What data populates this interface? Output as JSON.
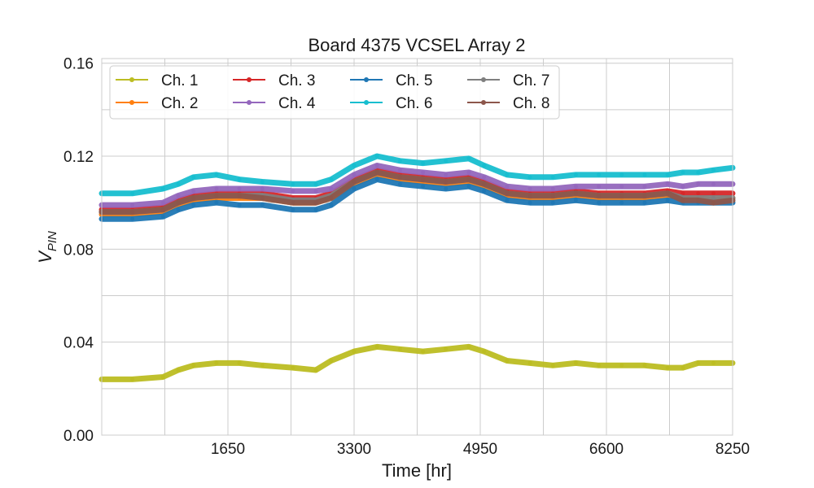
{
  "chart_data": {
    "type": "line",
    "title": "Board 4375 VCSEL Array 2",
    "xlabel": "Time [hr]",
    "ylabel_main": "V",
    "ylabel_sub": "PIN",
    "xlim": [
      0,
      8250
    ],
    "ylim": [
      0,
      0.162
    ],
    "xticks": [
      1650,
      3300,
      4950,
      6600,
      8250
    ],
    "xtick_labels": [
      "1650",
      "3300",
      "4950",
      "6600",
      "8250"
    ],
    "xgrid": [
      825,
      1650,
      2475,
      3300,
      4125,
      4950,
      5775,
      6600,
      7425,
      8250
    ],
    "yticks": [
      0.0,
      0.04,
      0.08,
      0.12,
      0.16
    ],
    "ytick_labels": [
      "0.00",
      "0.04",
      "0.08",
      "0.12",
      "0.16"
    ],
    "ygrid": [
      0.0,
      0.02,
      0.04,
      0.06,
      0.08,
      0.1,
      0.12,
      0.14,
      0.16
    ],
    "grid": true,
    "legend_position": "top-left",
    "x": [
      0,
      400,
      800,
      1000,
      1200,
      1500,
      1800,
      2100,
      2500,
      2800,
      3000,
      3300,
      3600,
      3900,
      4200,
      4500,
      4800,
      5000,
      5300,
      5600,
      5900,
      6200,
      6500,
      6800,
      7100,
      7400,
      7600,
      7800,
      8000,
      8250
    ],
    "series": [
      {
        "name": "Ch. 1",
        "color": "#bcbd22",
        "values": [
          0.024,
          0.024,
          0.025,
          0.028,
          0.03,
          0.031,
          0.031,
          0.03,
          0.029,
          0.028,
          0.032,
          0.036,
          0.038,
          0.037,
          0.036,
          0.037,
          0.038,
          0.036,
          0.032,
          0.031,
          0.03,
          0.031,
          0.03,
          0.03,
          0.03,
          0.029,
          0.029,
          0.031,
          0.031,
          0.031
        ]
      },
      {
        "name": "Ch. 2",
        "color": "#ff7f0e",
        "values": [
          0.095,
          0.095,
          0.096,
          0.099,
          0.101,
          0.102,
          0.102,
          0.102,
          0.1,
          0.1,
          0.102,
          0.108,
          0.112,
          0.11,
          0.109,
          0.108,
          0.109,
          0.107,
          0.103,
          0.102,
          0.102,
          0.103,
          0.102,
          0.102,
          0.102,
          0.103,
          0.102,
          0.102,
          0.101,
          0.102
        ]
      },
      {
        "name": "Ch. 3",
        "color": "#d62728",
        "values": [
          0.097,
          0.097,
          0.098,
          0.101,
          0.103,
          0.104,
          0.104,
          0.104,
          0.102,
          0.102,
          0.104,
          0.11,
          0.114,
          0.112,
          0.111,
          0.11,
          0.111,
          0.109,
          0.105,
          0.104,
          0.104,
          0.105,
          0.104,
          0.104,
          0.104,
          0.105,
          0.104,
          0.104,
          0.104,
          0.104
        ]
      },
      {
        "name": "Ch. 4",
        "color": "#9467bd",
        "values": [
          0.099,
          0.099,
          0.1,
          0.103,
          0.105,
          0.106,
          0.106,
          0.106,
          0.105,
          0.105,
          0.106,
          0.112,
          0.116,
          0.114,
          0.113,
          0.112,
          0.113,
          0.111,
          0.107,
          0.106,
          0.106,
          0.107,
          0.107,
          0.107,
          0.107,
          0.108,
          0.107,
          0.108,
          0.108,
          0.108
        ]
      },
      {
        "name": "Ch. 5",
        "color": "#1f77b4",
        "values": [
          0.093,
          0.093,
          0.094,
          0.097,
          0.099,
          0.1,
          0.099,
          0.099,
          0.097,
          0.097,
          0.099,
          0.106,
          0.11,
          0.108,
          0.107,
          0.106,
          0.107,
          0.105,
          0.101,
          0.1,
          0.1,
          0.101,
          0.1,
          0.1,
          0.1,
          0.101,
          0.1,
          0.1,
          0.1,
          0.1
        ]
      },
      {
        "name": "Ch. 6",
        "color": "#17becf",
        "values": [
          0.104,
          0.104,
          0.106,
          0.108,
          0.111,
          0.112,
          0.11,
          0.109,
          0.108,
          0.108,
          0.11,
          0.116,
          0.12,
          0.118,
          0.117,
          0.118,
          0.119,
          0.116,
          0.112,
          0.111,
          0.111,
          0.112,
          0.112,
          0.112,
          0.112,
          0.112,
          0.113,
          0.113,
          0.114,
          0.115
        ]
      },
      {
        "name": "Ch. 7",
        "color": "#7f7f7f",
        "values": [
          0.096,
          0.096,
          0.097,
          0.1,
          0.102,
          0.103,
          0.103,
          0.103,
          0.101,
          0.101,
          0.103,
          0.109,
          0.113,
          0.111,
          0.11,
          0.109,
          0.11,
          0.108,
          0.104,
          0.103,
          0.103,
          0.104,
          0.103,
          0.103,
          0.103,
          0.104,
          0.102,
          0.102,
          0.102,
          0.102
        ]
      },
      {
        "name": "Ch. 8",
        "color": "#8c564b",
        "values": [
          0.096,
          0.096,
          0.097,
          0.1,
          0.102,
          0.103,
          0.103,
          0.102,
          0.1,
          0.1,
          0.102,
          0.109,
          0.113,
          0.111,
          0.11,
          0.109,
          0.11,
          0.108,
          0.104,
          0.103,
          0.103,
          0.104,
          0.103,
          0.103,
          0.103,
          0.104,
          0.101,
          0.101,
          0.1,
          0.101
        ]
      }
    ],
    "legend_order": [
      0,
      1,
      2,
      3,
      4,
      5,
      6,
      7
    ]
  }
}
